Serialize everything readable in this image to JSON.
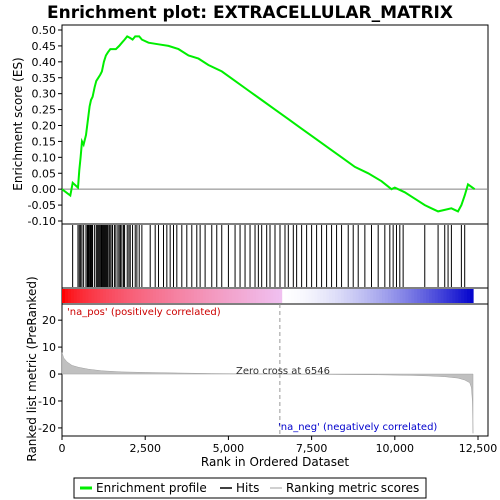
{
  "chart_data": {
    "type": "line",
    "title": "Enrichment plot: EXTRACELLULAR_MATRIX",
    "top_panel": {
      "ylabel": "Enrichment score (ES)",
      "ylim": [
        -0.1,
        0.5
      ],
      "yticks": [
        "-0.10",
        "-0.05",
        "0.00",
        "0.05",
        "0.10",
        "0.15",
        "0.20",
        "0.25",
        "0.30",
        "0.35",
        "0.40",
        "0.45",
        "0.50"
      ],
      "ytick_values": [
        -0.1,
        -0.05,
        0.0,
        0.05,
        0.1,
        0.15,
        0.2,
        0.25,
        0.3,
        0.35,
        0.4,
        0.45,
        0.5
      ],
      "series": [
        {
          "name": "Enrichment profile",
          "color": "#00ee00",
          "x": [
            0,
            250,
            320,
            480,
            520,
            560,
            600,
            650,
            720,
            780,
            830,
            870,
            920,
            980,
            1030,
            1090,
            1150,
            1200,
            1260,
            1320,
            1380,
            1450,
            1520,
            1620,
            1720,
            1800,
            1880,
            1960,
            2050,
            2120,
            2200,
            2320,
            2400,
            2600,
            2900,
            3200,
            3500,
            3800,
            4100,
            4400,
            4800,
            5200,
            5600,
            6000,
            6400,
            6800,
            7200,
            7600,
            8000,
            8400,
            8800,
            9200,
            9600,
            9900,
            10000,
            10300,
            10600,
            10900,
            11100,
            11300,
            11500,
            11700,
            11900,
            12000,
            12100,
            12200,
            12400
          ],
          "y": [
            0.0,
            -0.02,
            0.02,
            0.005,
            0.06,
            0.1,
            0.15,
            0.14,
            0.17,
            0.22,
            0.26,
            0.28,
            0.29,
            0.32,
            0.34,
            0.35,
            0.36,
            0.37,
            0.4,
            0.42,
            0.43,
            0.44,
            0.44,
            0.44,
            0.45,
            0.46,
            0.47,
            0.48,
            0.475,
            0.47,
            0.48,
            0.48,
            0.47,
            0.46,
            0.455,
            0.45,
            0.44,
            0.42,
            0.41,
            0.39,
            0.37,
            0.34,
            0.31,
            0.28,
            0.25,
            0.22,
            0.19,
            0.16,
            0.13,
            0.1,
            0.07,
            0.05,
            0.025,
            0.0,
            0.005,
            -0.01,
            -0.03,
            -0.05,
            -0.06,
            -0.07,
            -0.065,
            -0.06,
            -0.07,
            -0.05,
            -0.02,
            0.015,
            0.0
          ]
        }
      ]
    },
    "hits": {
      "name": "Hits",
      "positions": [
        320,
        480,
        520,
        560,
        600,
        650,
        720,
        760,
        780,
        800,
        830,
        850,
        870,
        900,
        920,
        980,
        1030,
        1060,
        1090,
        1120,
        1150,
        1180,
        1200,
        1230,
        1260,
        1290,
        1320,
        1350,
        1380,
        1420,
        1450,
        1500,
        1520,
        1580,
        1620,
        1680,
        1720,
        1760,
        1800,
        1850,
        1880,
        1960,
        2010,
        2050,
        2120,
        2200,
        2250,
        2320,
        2400,
        2650,
        2800,
        2900,
        3050,
        3150,
        3250,
        3350,
        3450,
        3600,
        3750,
        3900,
        4050,
        4150,
        4300,
        4500,
        4650,
        4800,
        5000,
        5200,
        5350,
        5500,
        5650,
        5800,
        5900,
        6000,
        6150,
        6250,
        6400,
        6550,
        6700,
        6800,
        6950,
        7050,
        7200,
        7350,
        7500,
        7650,
        7800,
        7950,
        8100,
        8250,
        8400,
        8600,
        8750,
        8900,
        9100,
        9300,
        9500,
        9700,
        9850,
        9950,
        10050,
        10150,
        10250,
        10900,
        11300,
        11500,
        11600,
        11700,
        12000,
        12100
      ]
    },
    "rank_band": {
      "left_color": "#ff0000",
      "mid_color": "#f0c0f0",
      "right_color": "#0000cc"
    },
    "bottom_panel": {
      "ylabel": "Ranked list metric (PreRanked)",
      "xlabel": "Rank in Ordered Dataset",
      "ylim": [
        -23,
        26
      ],
      "yticks": [
        "-20",
        "-10",
        "0",
        "10",
        "20"
      ],
      "ytick_values": [
        -20,
        -10,
        0,
        10,
        20
      ],
      "xlim": [
        0,
        12800
      ],
      "xticks": [
        "0",
        "2,500",
        "5,000",
        "7,500",
        "10,000",
        "12,500"
      ],
      "xtick_values": [
        0,
        2500,
        5000,
        7500,
        10000,
        12500
      ],
      "metric_profile": {
        "x": [
          0,
          50,
          150,
          300,
          500,
          800,
          1200,
          1800,
          2500,
          3500,
          4500,
          5500,
          6546,
          7500,
          8500,
          9500,
          10500,
          11000,
          11500,
          11900,
          12100,
          12250,
          12300,
          12330,
          12350
        ],
        "y": [
          8.0,
          6.0,
          4.5,
          3.2,
          2.5,
          1.8,
          1.2,
          0.8,
          0.6,
          0.4,
          0.2,
          0.1,
          0.0,
          -0.1,
          -0.2,
          -0.3,
          -0.5,
          -0.7,
          -1.0,
          -1.5,
          -2.2,
          -3.2,
          -5.0,
          -10.0,
          -22.0
        ],
        "color": "#c0c0c0"
      },
      "zero_cross": 6546,
      "annotations": {
        "zero_cross_label": "Zero cross at 6546",
        "pos_label": "'na_pos' (positively correlated)",
        "neg_label": "'na_neg' (negatively correlated)",
        "pos_color": "#cc0000",
        "neg_color": "#0000cc"
      }
    },
    "legend": {
      "items": [
        {
          "name": "Enrichment profile",
          "color": "#00ee00"
        },
        {
          "name": "Hits",
          "color": "#000000"
        },
        {
          "name": "Ranking metric scores",
          "color": "#c0c0c0"
        }
      ]
    }
  }
}
